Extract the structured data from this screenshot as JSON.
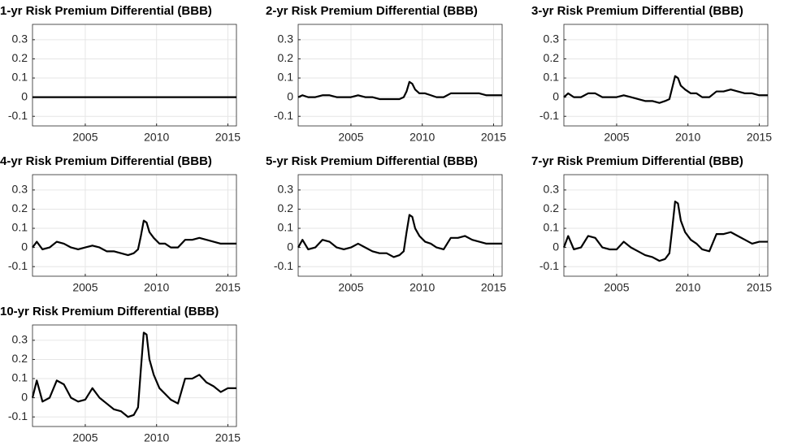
{
  "chart_data": [
    {
      "type": "line",
      "title": "1-yr  Risk Premium Differential (BBB)",
      "color": "#000000",
      "grid": true,
      "xlim": [
        2001.3,
        2015.6
      ],
      "ylim": [
        -0.15,
        0.38
      ],
      "xticks": [
        2005,
        2010,
        2015
      ],
      "yticks": [
        -0.1,
        0,
        0.1,
        0.2,
        0.3
      ],
      "x": [
        2001.3,
        2001.6,
        2002,
        2002.5,
        2003,
        2003.5,
        2004,
        2004.5,
        2005,
        2005.5,
        2006,
        2006.5,
        2007,
        2007.5,
        2008,
        2008.4,
        2008.7,
        2008.9,
        2009.1,
        2009.3,
        2009.5,
        2009.8,
        2010.2,
        2010.6,
        2011,
        2011.5,
        2012,
        2012.5,
        2013,
        2013.5,
        2014,
        2014.5,
        2015,
        2015.6
      ],
      "values": [
        0,
        0,
        0,
        0,
        0,
        0,
        0,
        0,
        0,
        0,
        0,
        0,
        0,
        0,
        0,
        0,
        0,
        0,
        0,
        0,
        0,
        0,
        0,
        0,
        0,
        0,
        0,
        0,
        0,
        0,
        0,
        0,
        0,
        0
      ]
    },
    {
      "type": "line",
      "title": "2-yr  Risk Premium Differential (BBB)",
      "color": "#000000",
      "grid": true,
      "xlim": [
        2001.3,
        2015.6
      ],
      "ylim": [
        -0.15,
        0.38
      ],
      "xticks": [
        2005,
        2010,
        2015
      ],
      "yticks": [
        -0.1,
        0,
        0.1,
        0.2,
        0.3
      ],
      "x": [
        2001.3,
        2001.6,
        2002,
        2002.5,
        2003,
        2003.5,
        2004,
        2004.5,
        2005,
        2005.5,
        2006,
        2006.5,
        2007,
        2007.5,
        2008,
        2008.4,
        2008.7,
        2008.9,
        2009.1,
        2009.3,
        2009.5,
        2009.8,
        2010.2,
        2010.6,
        2011,
        2011.5,
        2012,
        2012.5,
        2013,
        2013.5,
        2014,
        2014.5,
        2015,
        2015.6
      ],
      "values": [
        0,
        0.01,
        0,
        0,
        0.01,
        0.01,
        0,
        0,
        0,
        0.01,
        0,
        0,
        -0.01,
        -0.01,
        -0.01,
        -0.01,
        0,
        0.03,
        0.08,
        0.07,
        0.04,
        0.02,
        0.02,
        0.01,
        0,
        0,
        0.02,
        0.02,
        0.02,
        0.02,
        0.02,
        0.01,
        0.01,
        0.01
      ]
    },
    {
      "type": "line",
      "title": "3-yr  Risk Premium Differential (BBB)",
      "color": "#000000",
      "grid": true,
      "xlim": [
        2001.3,
        2015.6
      ],
      "ylim": [
        -0.15,
        0.38
      ],
      "xticks": [
        2005,
        2010,
        2015
      ],
      "yticks": [
        -0.1,
        0,
        0.1,
        0.2,
        0.3
      ],
      "x": [
        2001.3,
        2001.6,
        2002,
        2002.5,
        2003,
        2003.5,
        2004,
        2004.5,
        2005,
        2005.5,
        2006,
        2006.5,
        2007,
        2007.5,
        2008,
        2008.4,
        2008.7,
        2008.9,
        2009.1,
        2009.3,
        2009.5,
        2009.8,
        2010.2,
        2010.6,
        2011,
        2011.5,
        2012,
        2012.5,
        2013,
        2013.5,
        2014,
        2014.5,
        2015,
        2015.6
      ],
      "values": [
        0,
        0.02,
        0,
        0,
        0.02,
        0.02,
        0,
        0,
        0,
        0.01,
        0,
        -0.01,
        -0.02,
        -0.02,
        -0.03,
        -0.02,
        -0.01,
        0.05,
        0.11,
        0.1,
        0.06,
        0.04,
        0.02,
        0.02,
        0,
        0,
        0.03,
        0.03,
        0.04,
        0.03,
        0.02,
        0.02,
        0.01,
        0.01
      ]
    },
    {
      "type": "line",
      "title": "4-yr  Risk Premium Differential (BBB)",
      "color": "#000000",
      "grid": true,
      "xlim": [
        2001.3,
        2015.6
      ],
      "ylim": [
        -0.15,
        0.38
      ],
      "xticks": [
        2005,
        2010,
        2015
      ],
      "yticks": [
        -0.1,
        0,
        0.1,
        0.2,
        0.3
      ],
      "x": [
        2001.3,
        2001.6,
        2002,
        2002.5,
        2003,
        2003.5,
        2004,
        2004.5,
        2005,
        2005.5,
        2006,
        2006.5,
        2007,
        2007.5,
        2008,
        2008.4,
        2008.7,
        2008.9,
        2009.1,
        2009.3,
        2009.5,
        2009.8,
        2010.2,
        2010.6,
        2011,
        2011.5,
        2012,
        2012.5,
        2013,
        2013.5,
        2014,
        2014.5,
        2015,
        2015.6
      ],
      "values": [
        0,
        0.03,
        -0.01,
        0,
        0.03,
        0.02,
        0,
        -0.01,
        0,
        0.01,
        0,
        -0.02,
        -0.02,
        -0.03,
        -0.04,
        -0.03,
        -0.01,
        0.06,
        0.14,
        0.13,
        0.08,
        0.05,
        0.02,
        0.02,
        0,
        0,
        0.04,
        0.04,
        0.05,
        0.04,
        0.03,
        0.02,
        0.02,
        0.02
      ]
    },
    {
      "type": "line",
      "title": "5-yr  Risk Premium Differential (BBB)",
      "color": "#000000",
      "grid": true,
      "xlim": [
        2001.3,
        2015.6
      ],
      "ylim": [
        -0.15,
        0.38
      ],
      "xticks": [
        2005,
        2010,
        2015
      ],
      "yticks": [
        -0.1,
        0,
        0.1,
        0.2,
        0.3
      ],
      "x": [
        2001.3,
        2001.6,
        2002,
        2002.5,
        2003,
        2003.5,
        2004,
        2004.5,
        2005,
        2005.5,
        2006,
        2006.5,
        2007,
        2007.5,
        2008,
        2008.4,
        2008.7,
        2008.9,
        2009.1,
        2009.3,
        2009.5,
        2009.8,
        2010.2,
        2010.6,
        2011,
        2011.5,
        2012,
        2012.5,
        2013,
        2013.5,
        2014,
        2014.5,
        2015,
        2015.6
      ],
      "values": [
        0,
        0.04,
        -0.01,
        0,
        0.04,
        0.03,
        0,
        -0.01,
        0,
        0.02,
        0,
        -0.02,
        -0.03,
        -0.03,
        -0.05,
        -0.04,
        -0.02,
        0.08,
        0.17,
        0.16,
        0.1,
        0.06,
        0.03,
        0.02,
        0,
        -0.01,
        0.05,
        0.05,
        0.06,
        0.04,
        0.03,
        0.02,
        0.02,
        0.02
      ]
    },
    {
      "type": "line",
      "title": "7-yr  Risk Premium Differential (BBB)",
      "color": "#000000",
      "grid": true,
      "xlim": [
        2001.3,
        2015.6
      ],
      "ylim": [
        -0.15,
        0.38
      ],
      "xticks": [
        2005,
        2010,
        2015
      ],
      "yticks": [
        -0.1,
        0,
        0.1,
        0.2,
        0.3
      ],
      "x": [
        2001.3,
        2001.6,
        2002,
        2002.5,
        2003,
        2003.5,
        2004,
        2004.5,
        2005,
        2005.5,
        2006,
        2006.5,
        2007,
        2007.5,
        2008,
        2008.4,
        2008.7,
        2008.9,
        2009.1,
        2009.3,
        2009.5,
        2009.8,
        2010.2,
        2010.6,
        2011,
        2011.5,
        2012,
        2012.5,
        2013,
        2013.5,
        2014,
        2014.5,
        2015,
        2015.6
      ],
      "values": [
        0,
        0.06,
        -0.01,
        0,
        0.06,
        0.05,
        0,
        -0.01,
        -0.01,
        0.03,
        0,
        -0.02,
        -0.04,
        -0.05,
        -0.07,
        -0.06,
        -0.03,
        0.1,
        0.24,
        0.23,
        0.14,
        0.08,
        0.04,
        0.02,
        -0.01,
        -0.02,
        0.07,
        0.07,
        0.08,
        0.06,
        0.04,
        0.02,
        0.03,
        0.03
      ]
    },
    {
      "type": "line",
      "title": "10-yr  Risk Premium Differential (BBB)",
      "color": "#000000",
      "grid": true,
      "xlim": [
        2001.3,
        2015.6
      ],
      "ylim": [
        -0.15,
        0.38
      ],
      "xticks": [
        2005,
        2010,
        2015
      ],
      "yticks": [
        -0.1,
        0,
        0.1,
        0.2,
        0.3
      ],
      "x": [
        2001.3,
        2001.6,
        2002,
        2002.5,
        2003,
        2003.5,
        2004,
        2004.5,
        2005,
        2005.5,
        2006,
        2006.5,
        2007,
        2007.5,
        2008,
        2008.4,
        2008.7,
        2008.9,
        2009.1,
        2009.3,
        2009.5,
        2009.8,
        2010.2,
        2010.6,
        2011,
        2011.5,
        2012,
        2012.5,
        2013,
        2013.5,
        2014,
        2014.5,
        2015,
        2015.6
      ],
      "values": [
        0,
        0.09,
        -0.02,
        0,
        0.09,
        0.07,
        0,
        -0.02,
        -0.01,
        0.05,
        0,
        -0.03,
        -0.06,
        -0.07,
        -0.1,
        -0.09,
        -0.05,
        0.15,
        0.34,
        0.33,
        0.2,
        0.12,
        0.05,
        0.02,
        -0.01,
        -0.03,
        0.1,
        0.1,
        0.12,
        0.08,
        0.06,
        0.03,
        0.05,
        0.05
      ]
    }
  ]
}
